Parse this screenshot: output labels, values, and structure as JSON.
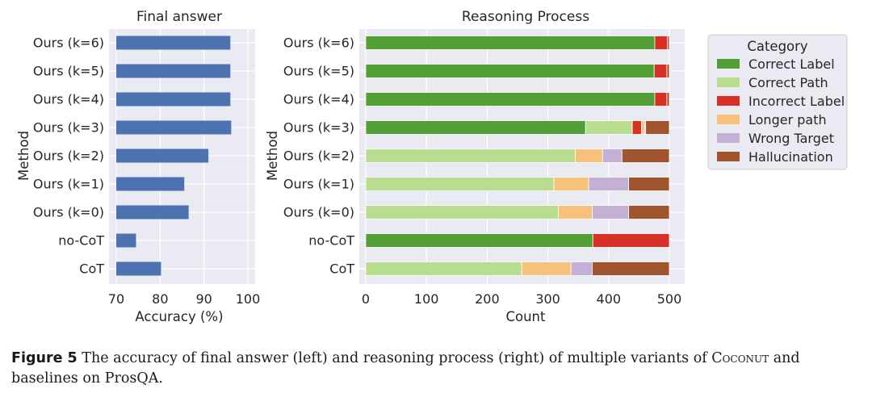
{
  "chart_data": [
    {
      "type": "bar",
      "orientation": "horizontal",
      "title": "Final answer",
      "xlabel": "Accuracy (%)",
      "ylabel": "Method",
      "xlim": [
        70,
        100
      ],
      "xticks": [
        "70",
        "80",
        "90",
        "100"
      ],
      "grid": true,
      "categories": [
        "Ours (k=6)",
        "Ours (k=5)",
        "Ours (k=4)",
        "Ours (k=3)",
        "Ours (k=2)",
        "Ours (k=1)",
        "Ours (k=0)",
        "no-CoT",
        "CoT"
      ],
      "values": [
        96.0,
        96.0,
        96.0,
        96.2,
        91.0,
        85.5,
        86.5,
        74.5,
        80.2
      ],
      "color": "#4c72b0"
    },
    {
      "type": "bar",
      "orientation": "horizontal",
      "stacked": true,
      "title": "Reasoning Process",
      "xlabel": "Count",
      "ylabel": "Method",
      "xlim": [
        0,
        500
      ],
      "xticks": [
        "0",
        "100",
        "200",
        "300",
        "400",
        "500"
      ],
      "grid": true,
      "categories": [
        "Ours (k=6)",
        "Ours (k=5)",
        "Ours (k=4)",
        "Ours (k=3)",
        "Ours (k=2)",
        "Ours (k=1)",
        "Ours (k=0)",
        "no-CoT",
        "CoT"
      ],
      "legend_title": "Category",
      "legend_position": "upper right, outside",
      "series": [
        {
          "name": "Correct Label",
          "color": "#52a035",
          "values": [
            476,
            475,
            476,
            362,
            0,
            0,
            0,
            374,
            0
          ]
        },
        {
          "name": "Correct Path",
          "color": "#b8dd8e",
          "values": [
            0,
            0,
            0,
            77,
            345,
            310,
            317,
            0,
            257
          ]
        },
        {
          "name": "Incorrect Label",
          "color": "#d73027",
          "values": [
            21,
            21,
            20,
            15,
            0,
            0,
            0,
            126,
            0
          ]
        },
        {
          "name": "Longer path",
          "color": "#f5c17b",
          "values": [
            0,
            0,
            0,
            5,
            45,
            57,
            56,
            0,
            81
          ]
        },
        {
          "name": "Wrong Target",
          "color": "#c5b0d5",
          "values": [
            0,
            0,
            0,
            2,
            32,
            66,
            60,
            0,
            35
          ]
        },
        {
          "name": "Hallucination",
          "color": "#a0552f",
          "values": [
            3,
            4,
            4,
            39,
            78,
            67,
            67,
            0,
            127
          ]
        }
      ]
    }
  ],
  "caption": {
    "label": "Figure 5",
    "text_1": " The accuracy of final answer (left) and reasoning process (right) of multiple variants of ",
    "name": "Coconut",
    "text_2": " and baselines on ProsQA."
  }
}
